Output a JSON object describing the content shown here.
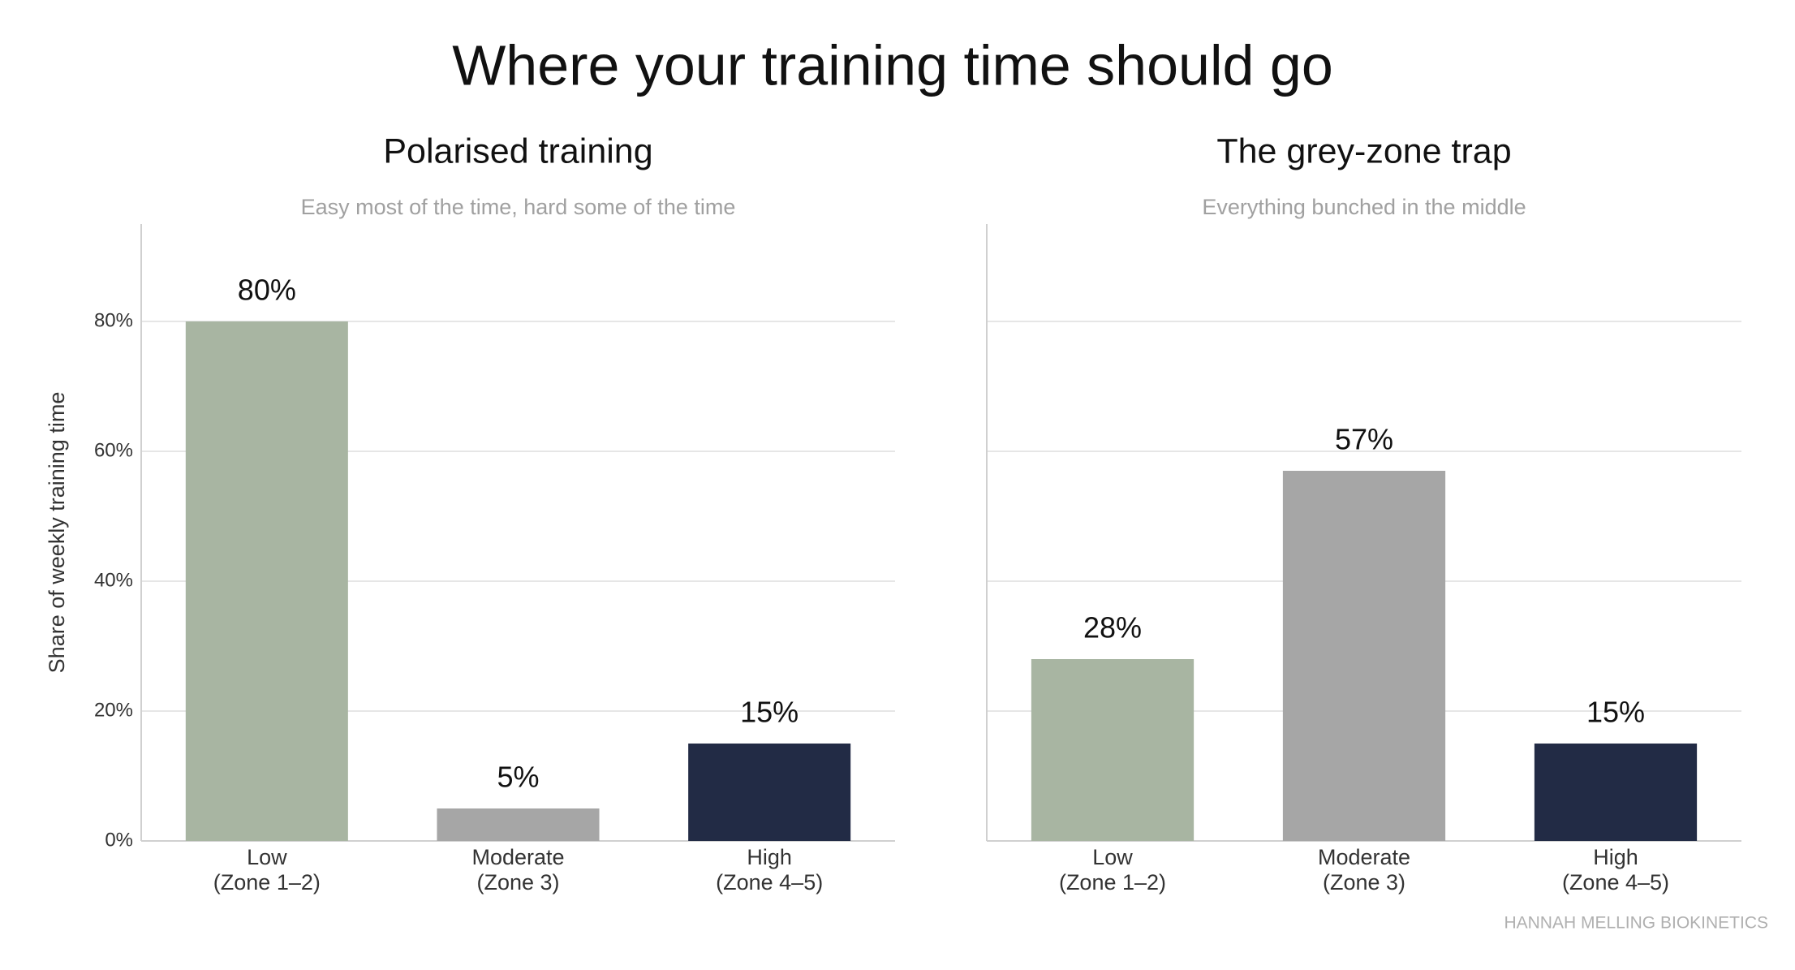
{
  "title": "Where your training time should go",
  "source": "HANNAH MELLING BIOKINETICS",
  "chart_data": [
    {
      "type": "bar",
      "title": "Polarised training",
      "subtitle": "Easy most of the time, hard some of the time",
      "y_label": "Share of weekly training time",
      "categories": [
        [
          "Low",
          "(Zone 1–2)"
        ],
        [
          "Moderate",
          "(Zone 3)"
        ],
        [
          "High",
          "(Zone 4–5)"
        ]
      ],
      "values": [
        80,
        5,
        15
      ],
      "value_labels": [
        "80%",
        "5%",
        "15%"
      ],
      "colors": [
        "#a8b5a2",
        "#a6a6a6",
        "#222b45"
      ],
      "ylim": [
        0,
        95
      ],
      "yticks": [
        {
          "value": 0,
          "label": "0%"
        },
        {
          "value": 20,
          "label": "20%"
        },
        {
          "value": 40,
          "label": "40%"
        },
        {
          "value": 60,
          "label": "60%"
        },
        {
          "value": 80,
          "label": "80%"
        }
      ],
      "grid": true
    },
    {
      "type": "bar",
      "title": "The grey-zone trap",
      "subtitle": "Everything bunched in the middle",
      "categories": [
        [
          "Low",
          "(Zone 1–2)"
        ],
        [
          "Moderate",
          "(Zone 3)"
        ],
        [
          "High",
          "(Zone 4–5)"
        ]
      ],
      "values": [
        28,
        57,
        15
      ],
      "value_labels": [
        "28%",
        "57%",
        "15%"
      ],
      "colors": [
        "#a8b5a2",
        "#a6a6a6",
        "#222b45"
      ],
      "ylim": [
        0,
        95
      ],
      "yticks": [
        0,
        20,
        40,
        60,
        80
      ],
      "grid": true
    }
  ]
}
